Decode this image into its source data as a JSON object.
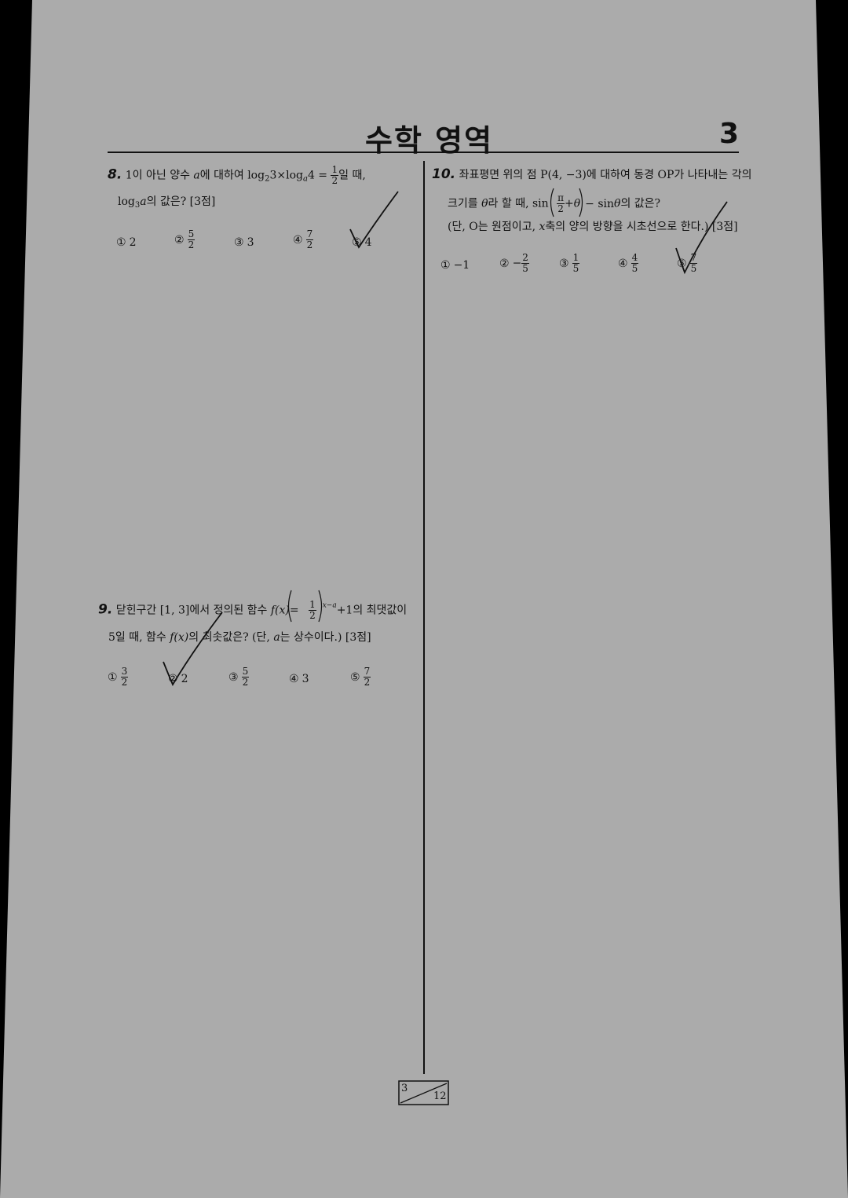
{
  "header": {
    "title": "수학 영역",
    "page_number": "3"
  },
  "q8": {
    "number": "8.",
    "line1_a": "1이 아닌 양수 ",
    "line1_var": "a",
    "line1_b": "에 대하여 log",
    "line1_sub1": "2",
    "line1_c": "3×log",
    "line1_sub2": "a",
    "line1_d": "4 =",
    "frac_num": "1",
    "frac_den": "2",
    "line1_e": "일 때,",
    "line2_a": "log",
    "line2_sub": "3",
    "line2_var": "a",
    "line2_b": "의 값은? [3점]",
    "choices": [
      {
        "mark": "①",
        "value": "2"
      },
      {
        "mark": "②",
        "num": "5",
        "den": "2"
      },
      {
        "mark": "③",
        "value": "3"
      },
      {
        "mark": "④",
        "num": "7",
        "den": "2"
      },
      {
        "mark": "⑤",
        "value": "4"
      }
    ]
  },
  "q9": {
    "number": "9.",
    "line1_a": "닫힌구간 [1, 3]에서 정의된 함수 ",
    "line1_fx": "f(x)",
    "line1_eq": "=",
    "frac_num": "1",
    "frac_den": "2",
    "exp": "x−a",
    "line1_b": "+1의 최댓값이",
    "line2_a": "5일 때, 함수 ",
    "line2_fx": "f(x)",
    "line2_b": "의 최솟값은? (단, ",
    "line2_var": "a",
    "line2_c": "는 상수이다.) [3점]",
    "choices": [
      {
        "mark": "①",
        "num": "3",
        "den": "2"
      },
      {
        "mark": "②",
        "value": "2"
      },
      {
        "mark": "③",
        "num": "5",
        "den": "2"
      },
      {
        "mark": "④",
        "value": "3"
      },
      {
        "mark": "⑤",
        "num": "7",
        "den": "2"
      }
    ]
  },
  "q10": {
    "number": "10.",
    "line1": "좌표평면 위의 점 P(4, −3)에 대하여 동경 OP가 나타내는 각의",
    "line2_a": "크기를 ",
    "line2_theta": "θ",
    "line2_b": "라 할 때, sin",
    "frac_num": "π",
    "frac_den": "2",
    "line2_c": "+θ",
    "line2_d": "− sin",
    "line2_theta2": "θ",
    "line2_e": "의 값은?",
    "line3_a": "(단, O는 원점이고, ",
    "line3_var": "x",
    "line3_b": "축의 양의 방향을 시초선으로 한다.) [3점]",
    "choices": [
      {
        "mark": "①",
        "value": "−1"
      },
      {
        "mark": "②",
        "sign": "−",
        "num": "2",
        "den": "5"
      },
      {
        "mark": "③",
        "num": "1",
        "den": "5"
      },
      {
        "mark": "④",
        "num": "4",
        "den": "5"
      },
      {
        "mark": "⑤",
        "num": "7",
        "den": "5"
      }
    ]
  },
  "footer": {
    "current": "3",
    "total": "12"
  },
  "colors": {
    "paper": "#ababab",
    "background": "#000000",
    "ink": "#111111"
  }
}
